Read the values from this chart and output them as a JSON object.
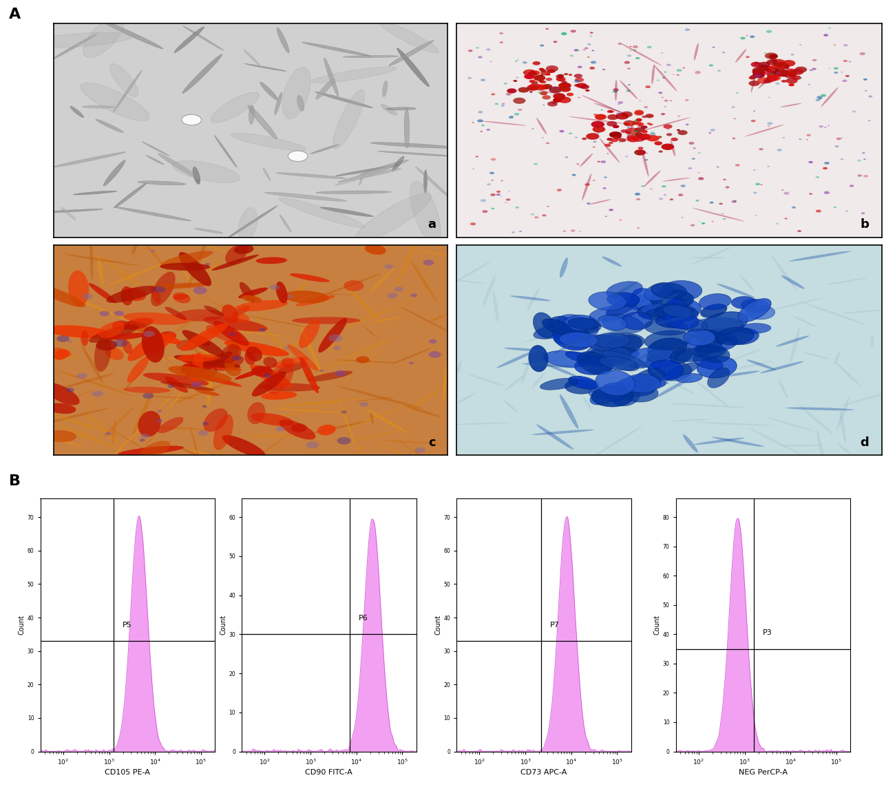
{
  "section_A_label": "A",
  "section_B_label": "B",
  "micro_labels": [
    "a",
    "b",
    "c",
    "d"
  ],
  "flow_labels": [
    "P5",
    "P6",
    "P7",
    "P3"
  ],
  "flow_xlabels": [
    "CD105 PE-A",
    "CD90 FITC-A",
    "CD73 APC-A",
    "NEG PerCP-A"
  ],
  "flow_ylabel": "Count",
  "background_color": "#ffffff",
  "histogram_color": "#EE82EE",
  "histogram_edge_color": "#CC44CC",
  "flow_panels": [
    {
      "label": "P5",
      "xlabel": "CD105 PE-A",
      "peak_log": 3.65,
      "sigma": 0.18,
      "ytop": 70,
      "yticks": [
        0,
        10,
        20,
        30,
        40,
        50,
        60,
        70
      ],
      "hline": 33,
      "vline_log": 3.1
    },
    {
      "label": "P6",
      "xlabel": "CD90 FITC-A",
      "peak_log": 4.35,
      "sigma": 0.18,
      "ytop": 60,
      "yticks": [
        0,
        10,
        20,
        30,
        40,
        50,
        60
      ],
      "hline": 30,
      "vline_log": 3.85
    },
    {
      "label": "P7",
      "xlabel": "CD73 APC-A",
      "peak_log": 3.9,
      "sigma": 0.18,
      "ytop": 70,
      "yticks": [
        0,
        10,
        20,
        30,
        40,
        50,
        60,
        70
      ],
      "hline": 33,
      "vline_log": 3.35
    },
    {
      "label": "P3",
      "xlabel": "NEG PerCP-A",
      "peak_log": 2.85,
      "sigma": 0.18,
      "ytop": 80,
      "yticks": [
        0,
        10,
        20,
        30,
        40,
        50,
        60,
        70,
        80
      ],
      "hline": 35,
      "vline_log": 3.2
    }
  ],
  "micro_colors": {
    "a_bg": "#c8c8c8",
    "b_bg": "#f2ecec",
    "c_bg": "#d4884a",
    "d_bg": "#c8e4e8"
  }
}
